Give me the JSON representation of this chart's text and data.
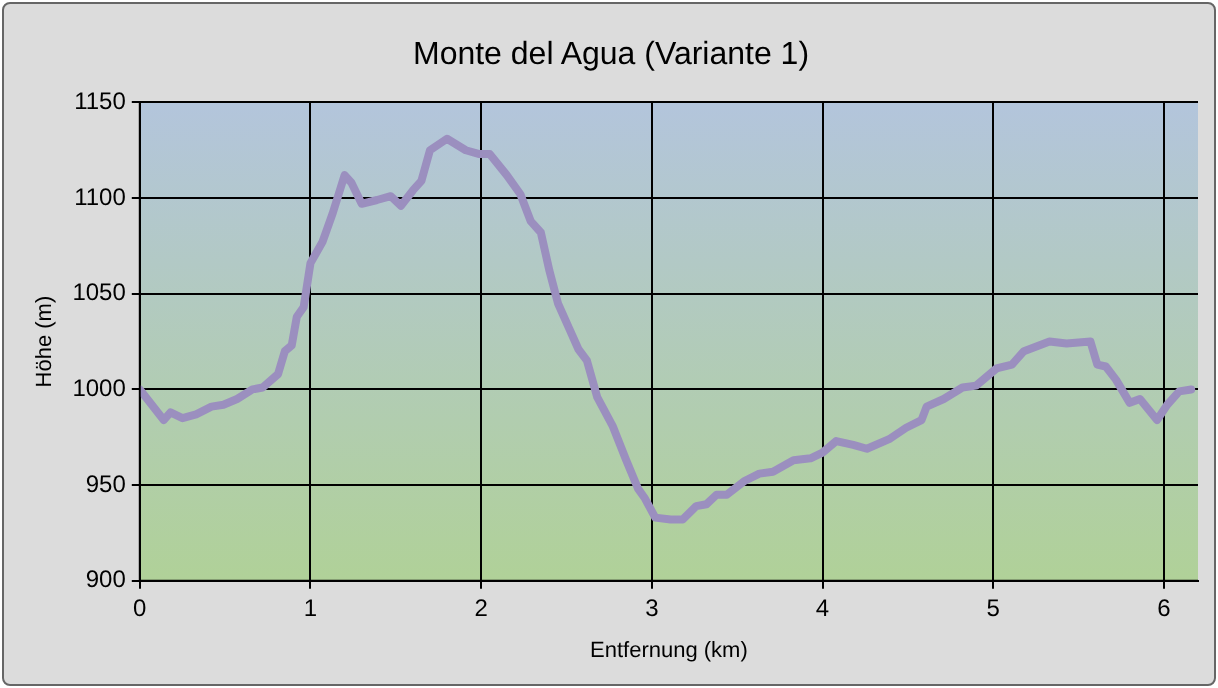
{
  "chart_data": {
    "type": "line",
    "title": "Monte del Agua (Variante 1)",
    "xlabel": "Entfernung (km)",
    "ylabel": "Höhe (m)",
    "x": [
      0,
      0.14,
      0.18,
      0.25,
      0.33,
      0.42,
      0.49,
      0.57,
      0.66,
      0.72,
      0.81,
      0.85,
      0.89,
      0.92,
      0.96,
      1.0,
      1.07,
      1.13,
      1.2,
      1.24,
      1.3,
      1.39,
      1.47,
      1.53,
      1.6,
      1.65,
      1.7,
      1.8,
      1.91,
      1.99,
      2.05,
      2.15,
      2.23,
      2.29,
      2.35,
      2.4,
      2.45,
      2.52,
      2.57,
      2.62,
      2.68,
      2.77,
      2.85,
      2.92,
      2.96,
      3.02,
      3.11,
      3.18,
      3.26,
      3.32,
      3.38,
      3.44,
      3.54,
      3.63,
      3.71,
      3.83,
      3.93,
      4.0,
      4.08,
      4.18,
      4.26,
      4.39,
      4.49,
      4.58,
      4.61,
      4.71,
      4.82,
      4.9,
      5.02,
      5.11,
      5.18,
      5.33,
      5.43,
      5.57,
      5.61,
      5.66,
      5.72,
      5.8,
      5.86,
      5.96,
      6.02,
      6.09,
      6.16
    ],
    "series": [
      {
        "color": "#9b8fbf",
        "values": [
          1000,
          984,
          988,
          985,
          987,
          991,
          992,
          995,
          1000,
          1001,
          1008,
          1020,
          1023,
          1038,
          1043,
          1066,
          1077,
          1092,
          1112,
          1108,
          1097,
          1099,
          1101,
          1096,
          1104,
          1109,
          1125,
          1131,
          1125,
          1123,
          1123,
          1112,
          1102,
          1088,
          1082,
          1062,
          1045,
          1031,
          1021,
          1015,
          996,
          981,
          963,
          948,
          943,
          933,
          932,
          932,
          939,
          940,
          945,
          945,
          952,
          956,
          957,
          963,
          964,
          967,
          973,
          971,
          969,
          974,
          980,
          984,
          991,
          995,
          1001,
          1002,
          1011,
          1013,
          1020,
          1025,
          1024,
          1025,
          1013,
          1012,
          1005,
          993,
          995,
          984,
          992,
          999,
          1000
        ]
      }
    ],
    "xlim": [
      0,
      6.2
    ],
    "xticks": [
      0,
      1,
      2,
      3,
      4,
      5,
      6
    ],
    "ylim": [
      900,
      1150
    ],
    "yticks": [
      900,
      950,
      1000,
      1050,
      1100,
      1150
    ],
    "grid": true,
    "legend": false,
    "marker": "none",
    "line_style": "solid"
  }
}
